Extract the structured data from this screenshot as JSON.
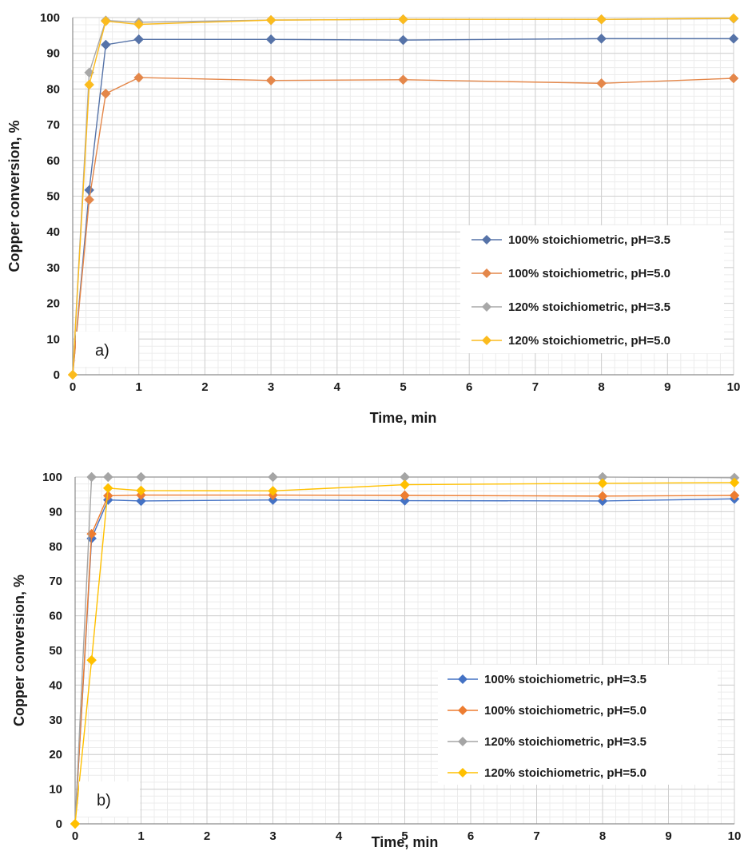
{
  "chart_data": [
    {
      "type": "line",
      "panel_label": "a)",
      "xlabel": "Time, min",
      "ylabel": "Copper conversion, %",
      "xlim": [
        0,
        10
      ],
      "ylim": [
        0,
        100
      ],
      "xticks": [
        "0",
        "1",
        "2",
        "3",
        "4",
        "5",
        "6",
        "7",
        "8",
        "9",
        "10"
      ],
      "yticks": [
        "0",
        "10",
        "20",
        "30",
        "40",
        "50",
        "60",
        "70",
        "80",
        "90",
        "100"
      ],
      "grid": true,
      "legend_position": "right",
      "x": [
        0,
        0.25,
        0.5,
        1,
        3,
        5,
        8,
        10
      ],
      "series": [
        {
          "name": "100% stoichiometric, pH=3.5",
          "color": "#5673a8",
          "values": [
            0,
            51.7,
            92.4,
            93.9,
            93.9,
            93.7,
            94.1,
            94.1
          ]
        },
        {
          "name": "100% stoichiometric, pH=5.0",
          "color": "#e4874a",
          "values": [
            0,
            49,
            78.7,
            83.2,
            82.4,
            82.6,
            81.6,
            83.0
          ]
        },
        {
          "name": "120% stoichiometric, pH=3.5",
          "color": "#a8a8a8",
          "values": [
            0,
            84.6,
            99.2,
            98.7,
            99.3,
            99.5,
            99.5,
            99.7
          ]
        },
        {
          "name": "120% stoichiometric, pH=5.0",
          "color": "#fbbb1e",
          "values": [
            0,
            81.2,
            99.0,
            98.1,
            99.3,
            99.5,
            99.5,
            99.8
          ]
        }
      ]
    },
    {
      "type": "line",
      "panel_label": "b)",
      "xlabel": "Time, min",
      "ylabel": "Copper conversion, %",
      "xlim": [
        0,
        10
      ],
      "ylim": [
        0,
        100
      ],
      "xticks": [
        "0",
        "1",
        "2",
        "3",
        "4",
        "5",
        "6",
        "7",
        "8",
        "9",
        "10"
      ],
      "yticks": [
        "0",
        "10",
        "20",
        "30",
        "40",
        "50",
        "60",
        "70",
        "80",
        "90",
        "100"
      ],
      "grid": true,
      "legend_position": "right",
      "x": [
        0,
        0.25,
        0.5,
        1,
        3,
        5,
        8,
        10
      ],
      "series": [
        {
          "name": "100% stoichiometric, pH=3.5",
          "color": "#4472c4",
          "values": [
            0,
            82.3,
            93.4,
            93.1,
            93.4,
            93.2,
            93.1,
            93.7
          ]
        },
        {
          "name": "100% stoichiometric, pH=5.0",
          "color": "#ed7d31",
          "values": [
            0,
            83.6,
            94.6,
            94.8,
            94.8,
            94.7,
            94.5,
            94.7
          ]
        },
        {
          "name": "120% stoichiometric, pH=3.5",
          "color": "#a5a5a5",
          "values": [
            0,
            100,
            100,
            100,
            100,
            100,
            100,
            99.8
          ]
        },
        {
          "name": "120% stoichiometric, pH=5.0",
          "color": "#ffc000",
          "values": [
            0,
            47.2,
            96.8,
            96.1,
            96.0,
            97.8,
            98.2,
            98.4
          ]
        }
      ]
    }
  ]
}
